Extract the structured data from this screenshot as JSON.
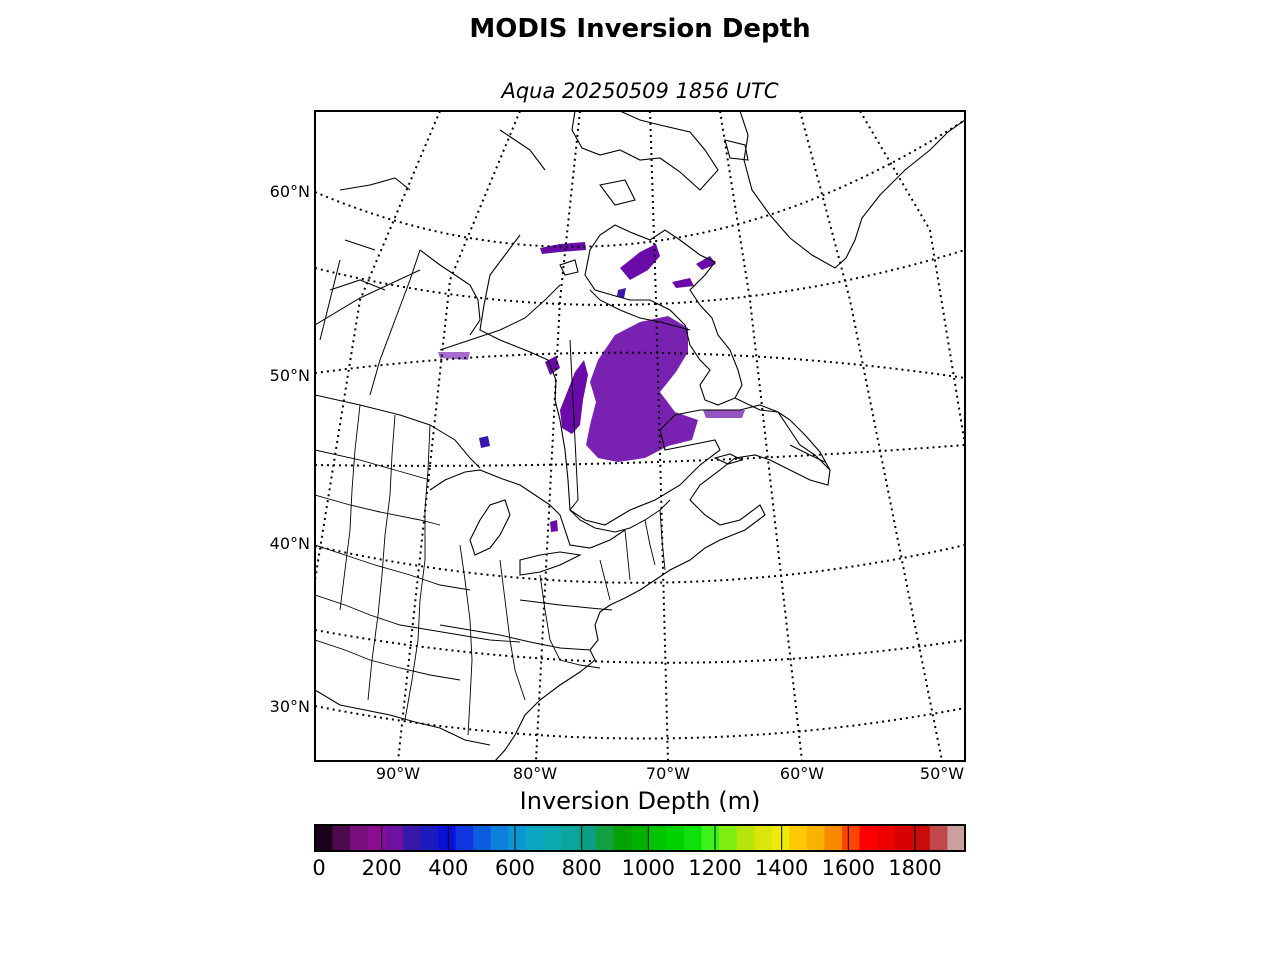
{
  "title": "MODIS Inversion Depth",
  "subtitle": "Aqua 20250509 1856 UTC",
  "colorbar": {
    "label": "Inversion Depth (m)",
    "ticks": [
      "0",
      "200",
      "400",
      "600",
      "800",
      "1000",
      "1200",
      "1400",
      "1600",
      "1800"
    ],
    "range": [
      0,
      1950
    ],
    "colors": [
      "#1a0019",
      "#4d0a4d",
      "#7a0f7f",
      "#8a0d92",
      "#6e10a0",
      "#3818ab",
      "#1d1bbf",
      "#0a10d8",
      "#0f35e0",
      "#0c5ddd",
      "#0e80dc",
      "#0b97d4",
      "#0aa6c4",
      "#0aaab2",
      "#0aa59d",
      "#0c9f84",
      "#12a043",
      "#04a204",
      "#00b200",
      "#00c400",
      "#00d200",
      "#0ce10a",
      "#3df31a",
      "#7fee10",
      "#b7e40a",
      "#dde40a",
      "#f0ea0a",
      "#ffc800",
      "#fbb100",
      "#f88a00",
      "#ff4400",
      "#ff0000",
      "#ec0000",
      "#d80000",
      "#c80c0c",
      "#c04848",
      "#cca0a0"
    ]
  },
  "map": {
    "lat_labels": [
      "60°N",
      "50°N",
      "40°N",
      "30°N"
    ],
    "lon_labels": [
      "90°W",
      "80°W",
      "70°W",
      "60°W",
      "50°W"
    ],
    "features": [
      "coastlines",
      "country-borders",
      "state-borders",
      "graticule"
    ],
    "data_color": "#6a0aa8"
  }
}
